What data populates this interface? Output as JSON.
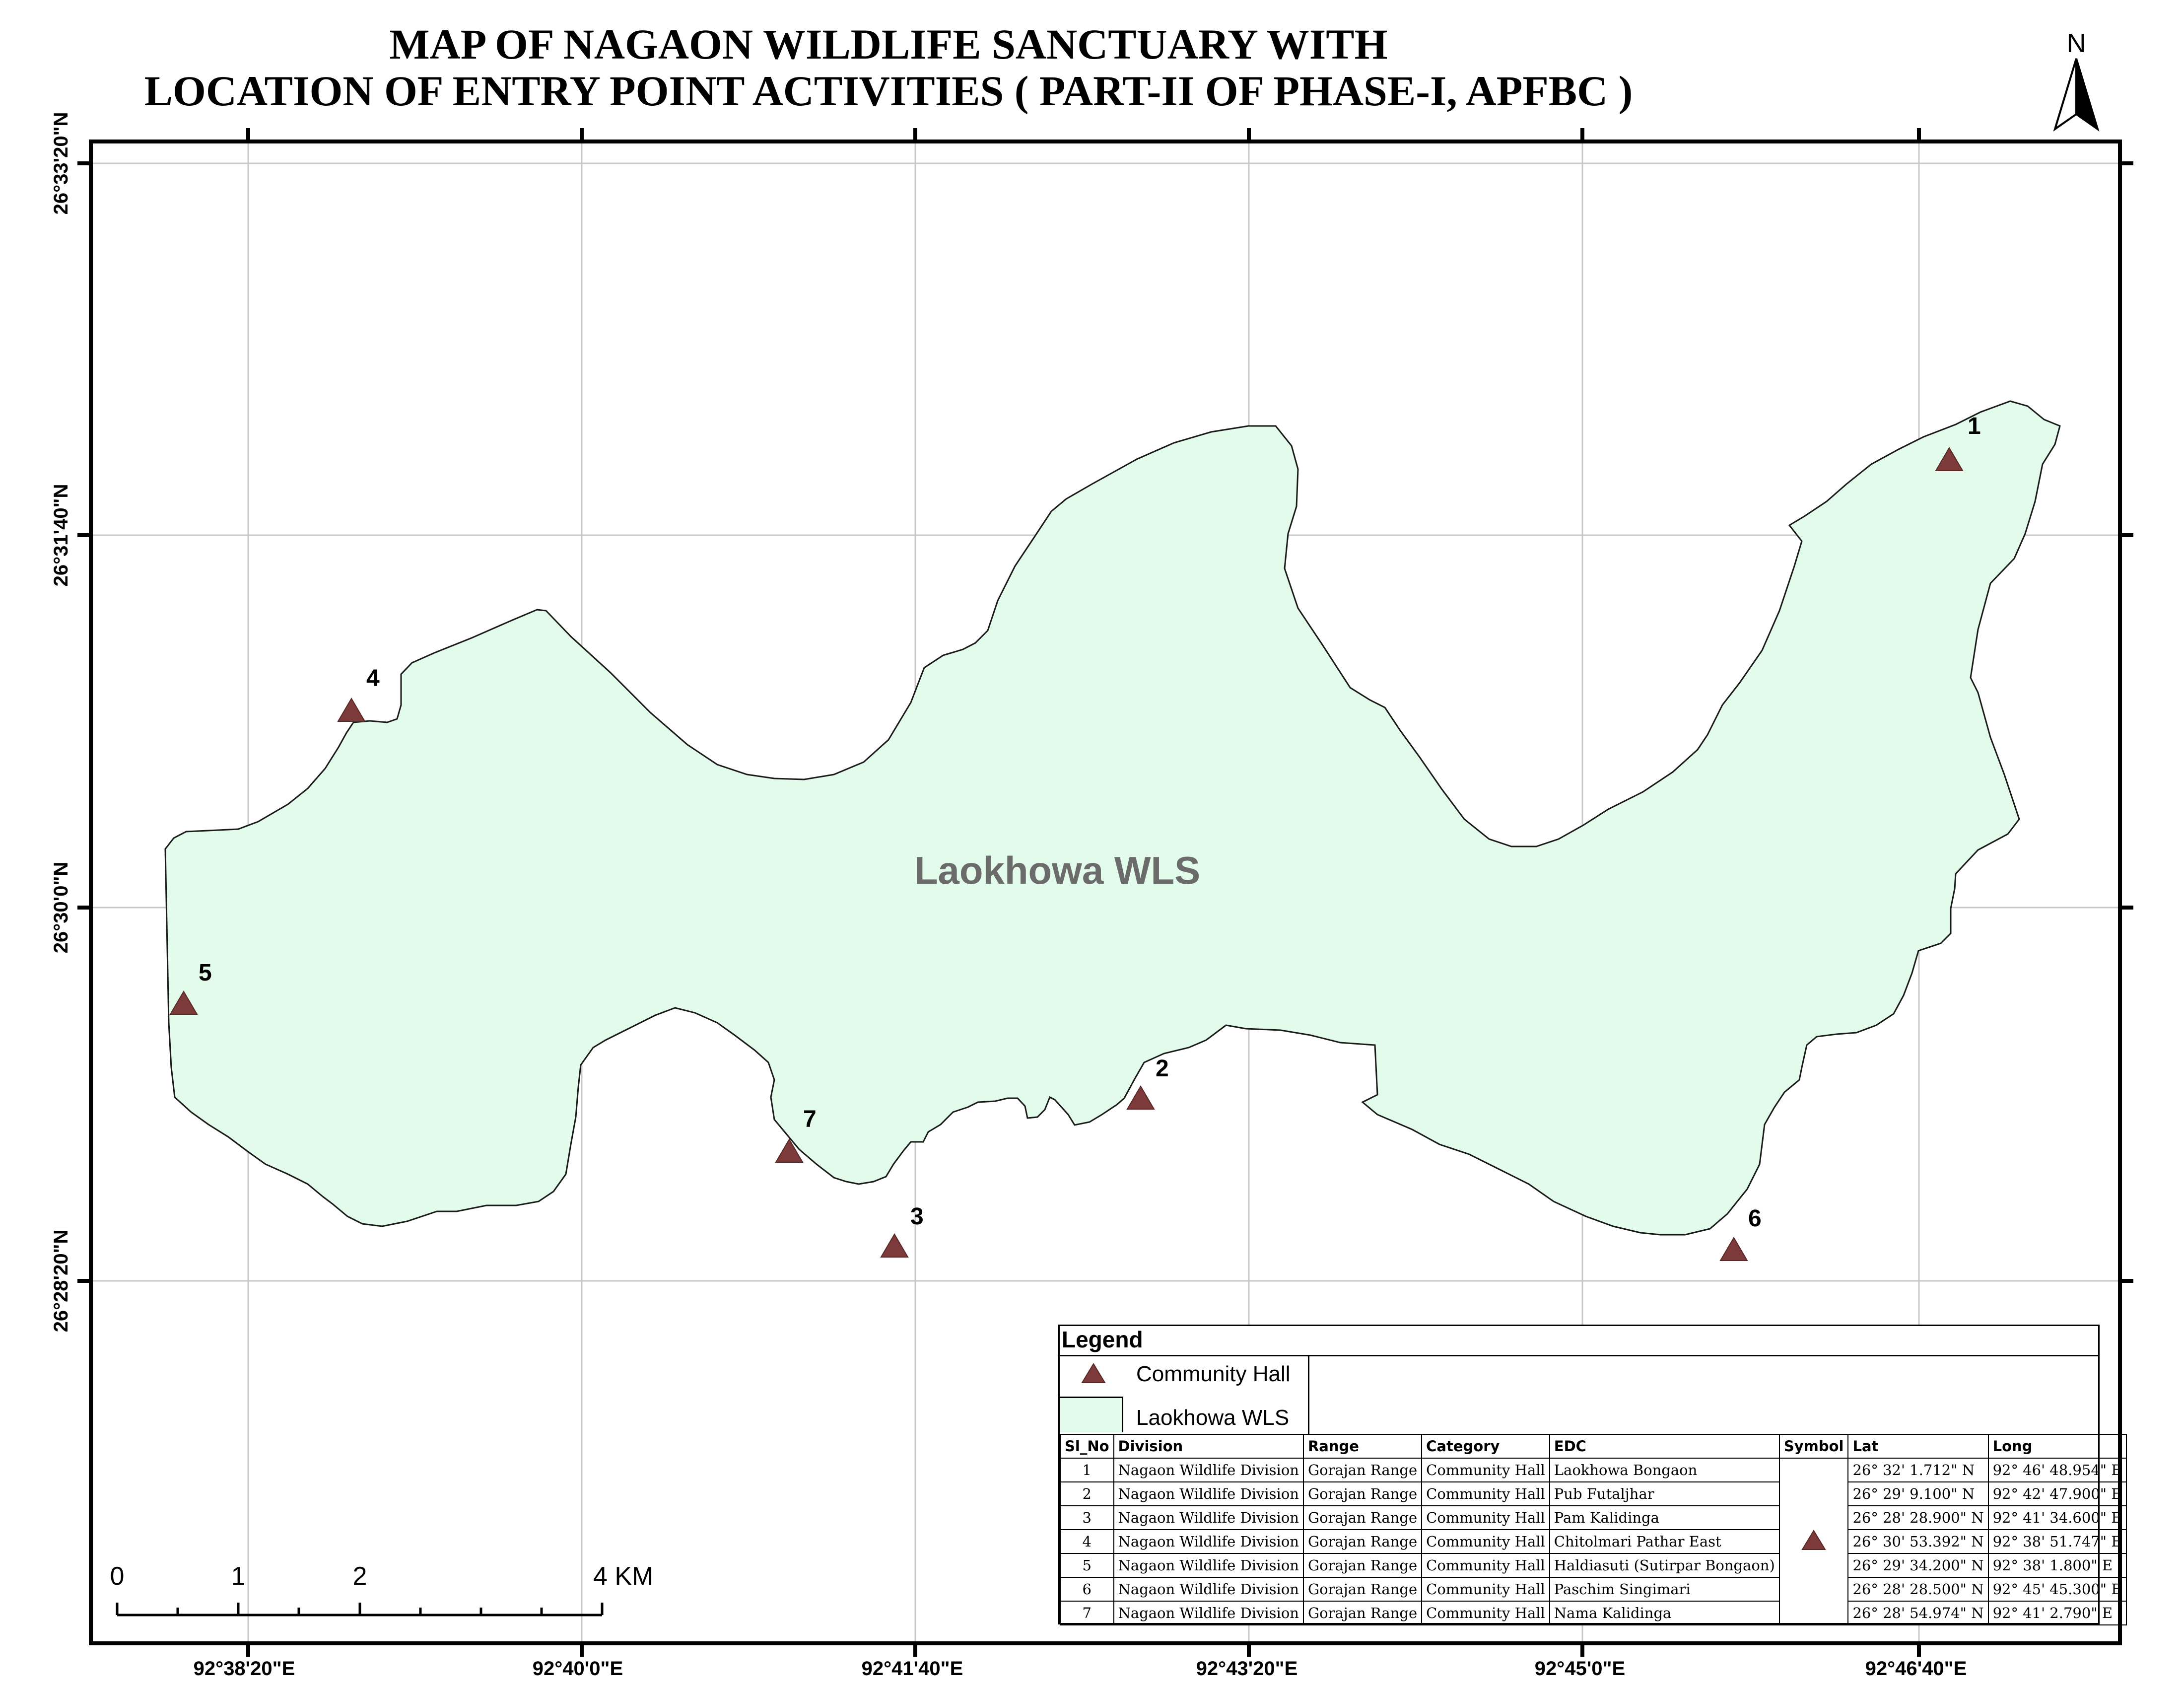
{
  "title": {
    "line1": "MAP OF NAGAON WILDLIFE SANCTUARY WITH",
    "line2": "LOCATION OF ENTRY POINT ACTIVITIES ( PART-II OF PHASE-I, APFBC )"
  },
  "north_arrow": {
    "letter": "N"
  },
  "axes": {
    "longitude_labels": [
      "92°38'20\"E",
      "92°40'0\"E",
      "92°41'40\"E",
      "92°43'20\"E",
      "92°45'0\"E",
      "92°46'40\"E"
    ],
    "latitude_labels": [
      "26°33'20\"N",
      "26°31'40\"N",
      "26°30'0\"N",
      "26°28'20\"N"
    ]
  },
  "area": {
    "label": "Laokhowa WLS",
    "fill_color": "#e2fbea"
  },
  "points": [
    {
      "id": "1",
      "label": "1"
    },
    {
      "id": "2",
      "label": "2"
    },
    {
      "id": "3",
      "label": "3"
    },
    {
      "id": "4",
      "label": "4"
    },
    {
      "id": "5",
      "label": "5"
    },
    {
      "id": "6",
      "label": "6"
    },
    {
      "id": "7",
      "label": "7"
    }
  ],
  "symbol_color": "#7c3a3a",
  "scale_bar": {
    "labels": [
      "0",
      "1",
      "2",
      "4 KM"
    ]
  },
  "legend": {
    "title": "Legend",
    "items": [
      {
        "symbol": "triangle",
        "label": "Community Hall"
      },
      {
        "symbol": "polygon",
        "label": "Laokhowa WLS"
      }
    ],
    "table": {
      "headers": [
        "Sl_No",
        "Division",
        "Range",
        "Category",
        "EDC",
        "Symbol",
        "Lat",
        "Long"
      ],
      "rows": [
        {
          "sl": "1",
          "division": "Nagaon Wildlife Division",
          "range": "Gorajan Range",
          "category": "Community Hall",
          "edc": "Laokhowa Bongaon",
          "lat": "26° 32' 1.712\" N",
          "long": "92° 46' 48.954\" E"
        },
        {
          "sl": "2",
          "division": "Nagaon Wildlife Division",
          "range": "Gorajan Range",
          "category": "Community Hall",
          "edc": "Pub Futaljhar",
          "lat": "26° 29' 9.100\" N",
          "long": "92° 42' 47.900\" E"
        },
        {
          "sl": "3",
          "division": "Nagaon Wildlife Division",
          "range": "Gorajan Range",
          "category": "Community Hall",
          "edc": "Pam Kalidinga",
          "lat": "26° 28' 28.900\" N",
          "long": "92° 41' 34.600\" E"
        },
        {
          "sl": "4",
          "division": "Nagaon Wildlife Division",
          "range": "Gorajan Range",
          "category": "Community Hall",
          "edc": "Chitolmari Pathar East",
          "lat": "26° 30' 53.392\" N",
          "long": "92° 38' 51.747\" E"
        },
        {
          "sl": "5",
          "division": "Nagaon Wildlife Division",
          "range": "Gorajan Range",
          "category": "Community Hall",
          "edc": "Haldiasuti (Sutirpar Bongaon)",
          "lat": "26° 29' 34.200\" N",
          "long": "92° 38' 1.800\" E"
        },
        {
          "sl": "6",
          "division": "Nagaon Wildlife Division",
          "range": "Gorajan Range",
          "category": "Community Hall",
          "edc": "Paschim Singimari",
          "lat": "26° 28' 28.500\" N",
          "long": "92° 45' 45.300\" E"
        },
        {
          "sl": "7",
          "division": "Nagaon Wildlife Division",
          "range": "Gorajan Range",
          "category": "Community Hall",
          "edc": "Nama Kalidinga",
          "lat": "26° 28' 54.974\" N",
          "long": "92° 41' 2.790\" E"
        }
      ]
    }
  }
}
